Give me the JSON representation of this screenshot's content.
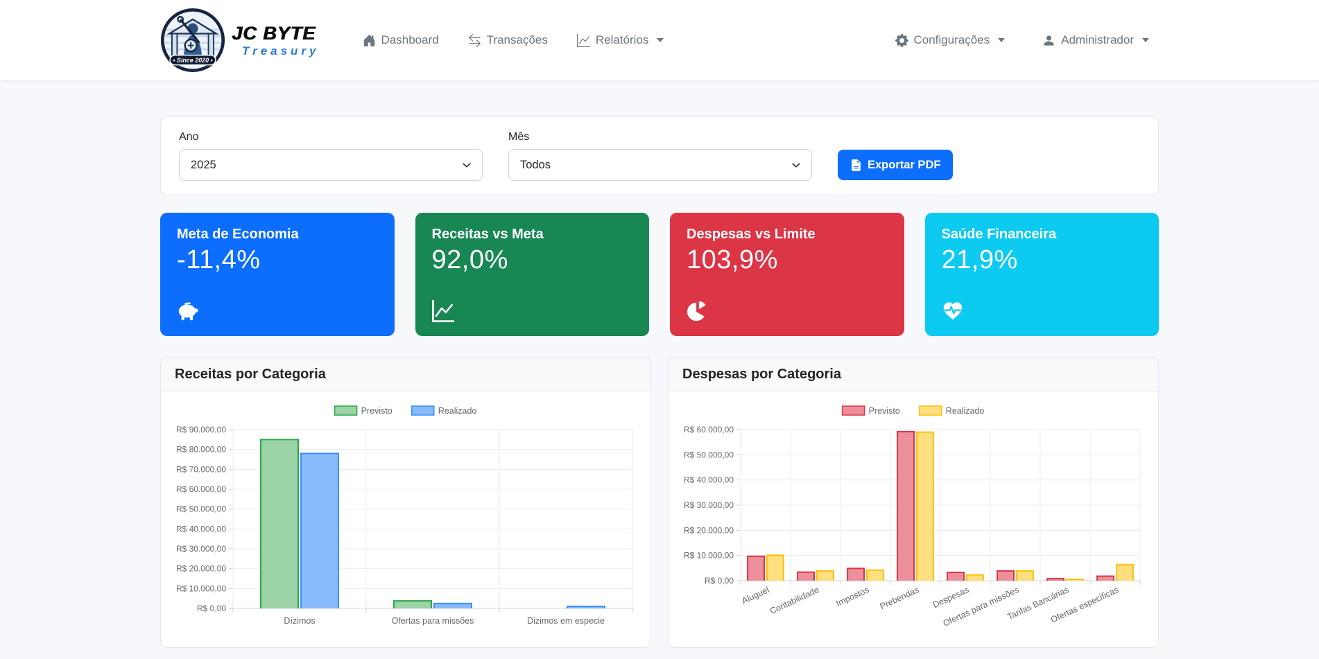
{
  "navbar": {
    "brand": {
      "name": "JC Byte",
      "sub": "Treasury",
      "since": "• Since 2020 •"
    },
    "items": [
      {
        "label": "Dashboard",
        "icon": "house"
      },
      {
        "label": "Transações",
        "icon": "arrows-left-right"
      },
      {
        "label": "Relatórios",
        "icon": "graph-up",
        "dropdown": true
      }
    ],
    "right": [
      {
        "label": "Configurações",
        "icon": "gear",
        "dropdown": true
      },
      {
        "label": "Administrador",
        "icon": "person",
        "dropdown": true
      }
    ]
  },
  "filters": {
    "year_label": "Ano",
    "year_value": "2025",
    "month_label": "Mês",
    "month_value": "Todos",
    "export_label": "Exportar PDF",
    "export_icon": "file-pdf",
    "button_color": "#0d6efd"
  },
  "stats": [
    {
      "title": "Meta de Economia",
      "value": "-11,4%",
      "color": "#0d6efd",
      "icon": "piggy-bank"
    },
    {
      "title": "Receitas vs Meta",
      "value": "92,0%",
      "color": "#198754",
      "icon": "chart-line"
    },
    {
      "title": "Despesas vs Limite",
      "value": "103,9%",
      "color": "#dc3545",
      "icon": "pie-chart"
    },
    {
      "title": "Saúde Financeira",
      "value": "21,9%",
      "color": "#0dcaf0",
      "icon": "heart-pulse"
    }
  ],
  "chart_data": [
    {
      "type": "bar",
      "title": "Receitas por Categoria",
      "categories": [
        "Dízimos",
        "Ofertas para missões",
        "Dizimos em especie"
      ],
      "series": [
        {
          "name": "Previsto",
          "values": [
            85000,
            3800,
            0
          ],
          "fill": "#9bd3a6",
          "border": "#28a745"
        },
        {
          "name": "Realizado",
          "values": [
            78000,
            2500,
            1000
          ],
          "fill": "#87bbfa",
          "border": "#3d8ef0"
        }
      ],
      "ylim": [
        0,
        90000
      ],
      "ytick_step": 10000,
      "ytick_prefix": "R$",
      "legend_position": "top",
      "grid": true,
      "label_rotation": 0
    },
    {
      "type": "bar",
      "title": "Despesas por Categoria",
      "categories": [
        "Aluguel",
        "Contabilidade",
        "Impostos",
        "Prebendas",
        "Despesas",
        "Ofertas para missões",
        "Tarifas Bancárias",
        "Ofertas especificas"
      ],
      "series": [
        {
          "name": "Previsto",
          "values": [
            9700,
            3400,
            4900,
            59200,
            3300,
            3900,
            800,
            1800
          ],
          "fill": "#ec8f9b",
          "border": "#dc3545"
        },
        {
          "name": "Realizado",
          "values": [
            10100,
            3900,
            4200,
            59000,
            2300,
            3900,
            500,
            6400
          ],
          "fill": "#ffdf80",
          "border": "#ffc107"
        }
      ],
      "ylim": [
        0,
        60000
      ],
      "ytick_step": 10000,
      "ytick_prefix": "R$",
      "legend_position": "top",
      "grid": true,
      "label_rotation": -25
    }
  ]
}
